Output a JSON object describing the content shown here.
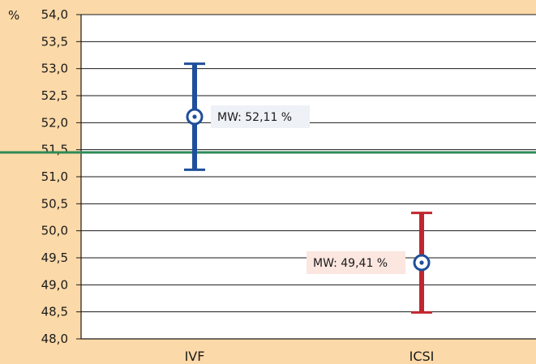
{
  "chart_data": {
    "type": "error-bar",
    "y_unit": "%",
    "ylim": [
      48.0,
      54.0
    ],
    "yticks": [
      "54,0",
      "53,5",
      "53,0",
      "52,5",
      "52,0",
      "51,5",
      "51,0",
      "50,5",
      "50,0",
      "49,5",
      "49,0",
      "48,5",
      "48,0"
    ],
    "ytick_values": [
      54.0,
      53.5,
      53.0,
      52.5,
      52.0,
      51.5,
      51.0,
      50.5,
      50.0,
      49.5,
      49.0,
      48.5,
      48.0
    ],
    "grid": true,
    "reference_line": {
      "value": 51.45,
      "color": "#2e8b57"
    },
    "categories": [
      "IVF",
      "ICSI"
    ],
    "series": [
      {
        "category": "IVF",
        "mean": 52.11,
        "low": 51.13,
        "high": 53.09,
        "color": "#1f4f9a",
        "annotation": "MW: 52,11 %",
        "annotation_bg": "#eef1f6",
        "annotation_side": "right"
      },
      {
        "category": "ICSI",
        "mean": 49.41,
        "low": 48.49,
        "high": 50.33,
        "color": "#c0262f",
        "annotation": "MW: 49,41 %",
        "annotation_bg": "#fbe6e0",
        "annotation_side": "left"
      }
    ]
  }
}
